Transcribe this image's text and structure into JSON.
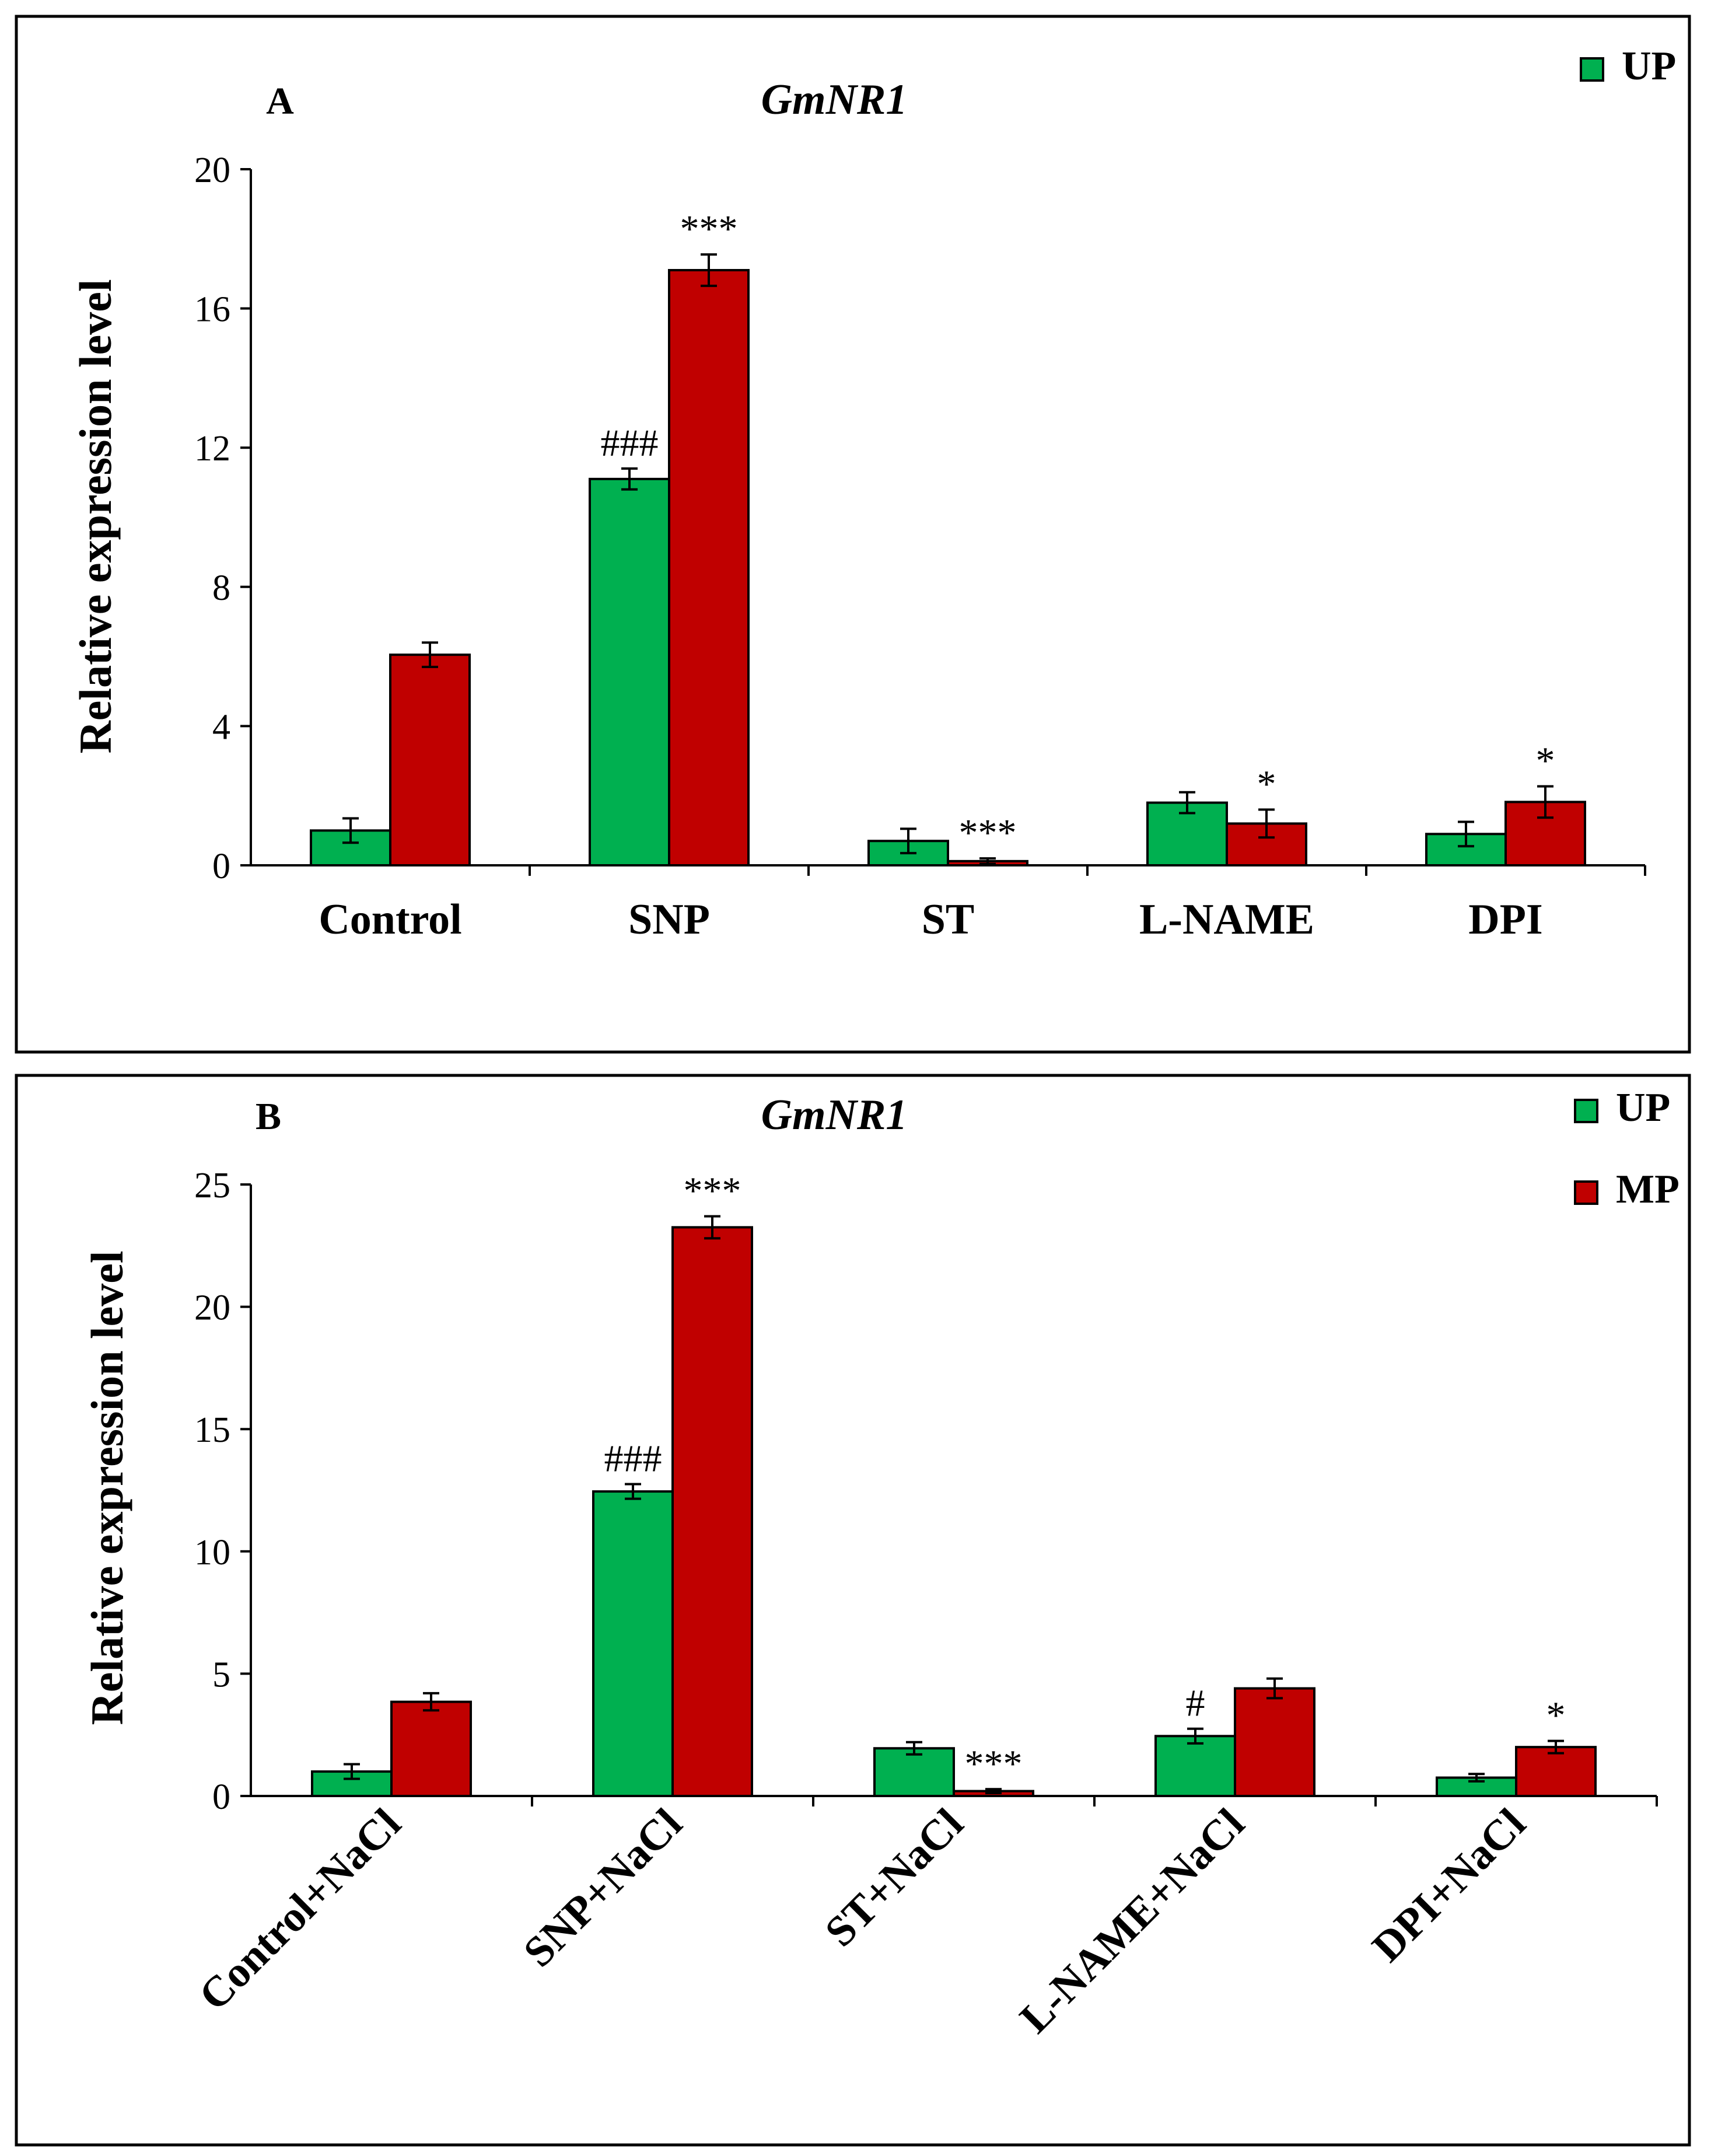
{
  "colors": {
    "up": "#00b050",
    "mp": "#c00000",
    "axis": "#000000",
    "border": "#000000"
  },
  "chart_data": [
    {
      "type": "bar",
      "panel_label": "A",
      "title": "GmNR1",
      "ylabel": "Relative expression level",
      "xlabel": "",
      "ylim": [
        0,
        20
      ],
      "yticks": [
        "0",
        "4",
        "8",
        "12",
        "16",
        "20"
      ],
      "grid": false,
      "legend_placement": "top-right",
      "legend": [
        "UP"
      ],
      "categories": [
        "Control",
        "SNP",
        "ST",
        "L-NAME",
        "DPI"
      ],
      "series": [
        {
          "name": "UP",
          "values": [
            1.0,
            11.1,
            0.7,
            1.8,
            0.9
          ],
          "errors": [
            0.35,
            0.3,
            0.35,
            0.3,
            0.35
          ],
          "annotations": [
            "",
            "###",
            "",
            "",
            ""
          ]
        },
        {
          "name": "MP",
          "values": [
            6.05,
            17.1,
            0.12,
            1.2,
            1.82
          ],
          "errors": [
            0.35,
            0.45,
            0.08,
            0.4,
            0.45
          ],
          "annotations": [
            "",
            "***",
            "***",
            "*",
            "*"
          ]
        }
      ]
    },
    {
      "type": "bar",
      "panel_label": "B",
      "title": "GmNR1",
      "ylabel": "Relative expression level",
      "xlabel": "",
      "ylim": [
        0,
        25
      ],
      "yticks": [
        "0",
        "5",
        "10",
        "15",
        "20",
        "25"
      ],
      "grid": false,
      "legend_placement": "top-right",
      "legend": [
        "UP",
        "MP"
      ],
      "categories": [
        "Control+NaCl",
        "SNP+NaCl",
        "ST+NaCl",
        "L-NAME+NaCl",
        "DPI+NaCl"
      ],
      "series": [
        {
          "name": "UP",
          "values": [
            1.0,
            12.45,
            1.95,
            2.45,
            0.75
          ],
          "errors": [
            0.3,
            0.3,
            0.25,
            0.3,
            0.15
          ],
          "annotations": [
            "",
            "###",
            "",
            "#",
            ""
          ]
        },
        {
          "name": "MP",
          "values": [
            3.85,
            23.25,
            0.2,
            4.4,
            2.0
          ],
          "errors": [
            0.35,
            0.45,
            0.08,
            0.4,
            0.25
          ],
          "annotations": [
            "",
            "***",
            "***",
            "",
            "*"
          ]
        }
      ]
    }
  ]
}
